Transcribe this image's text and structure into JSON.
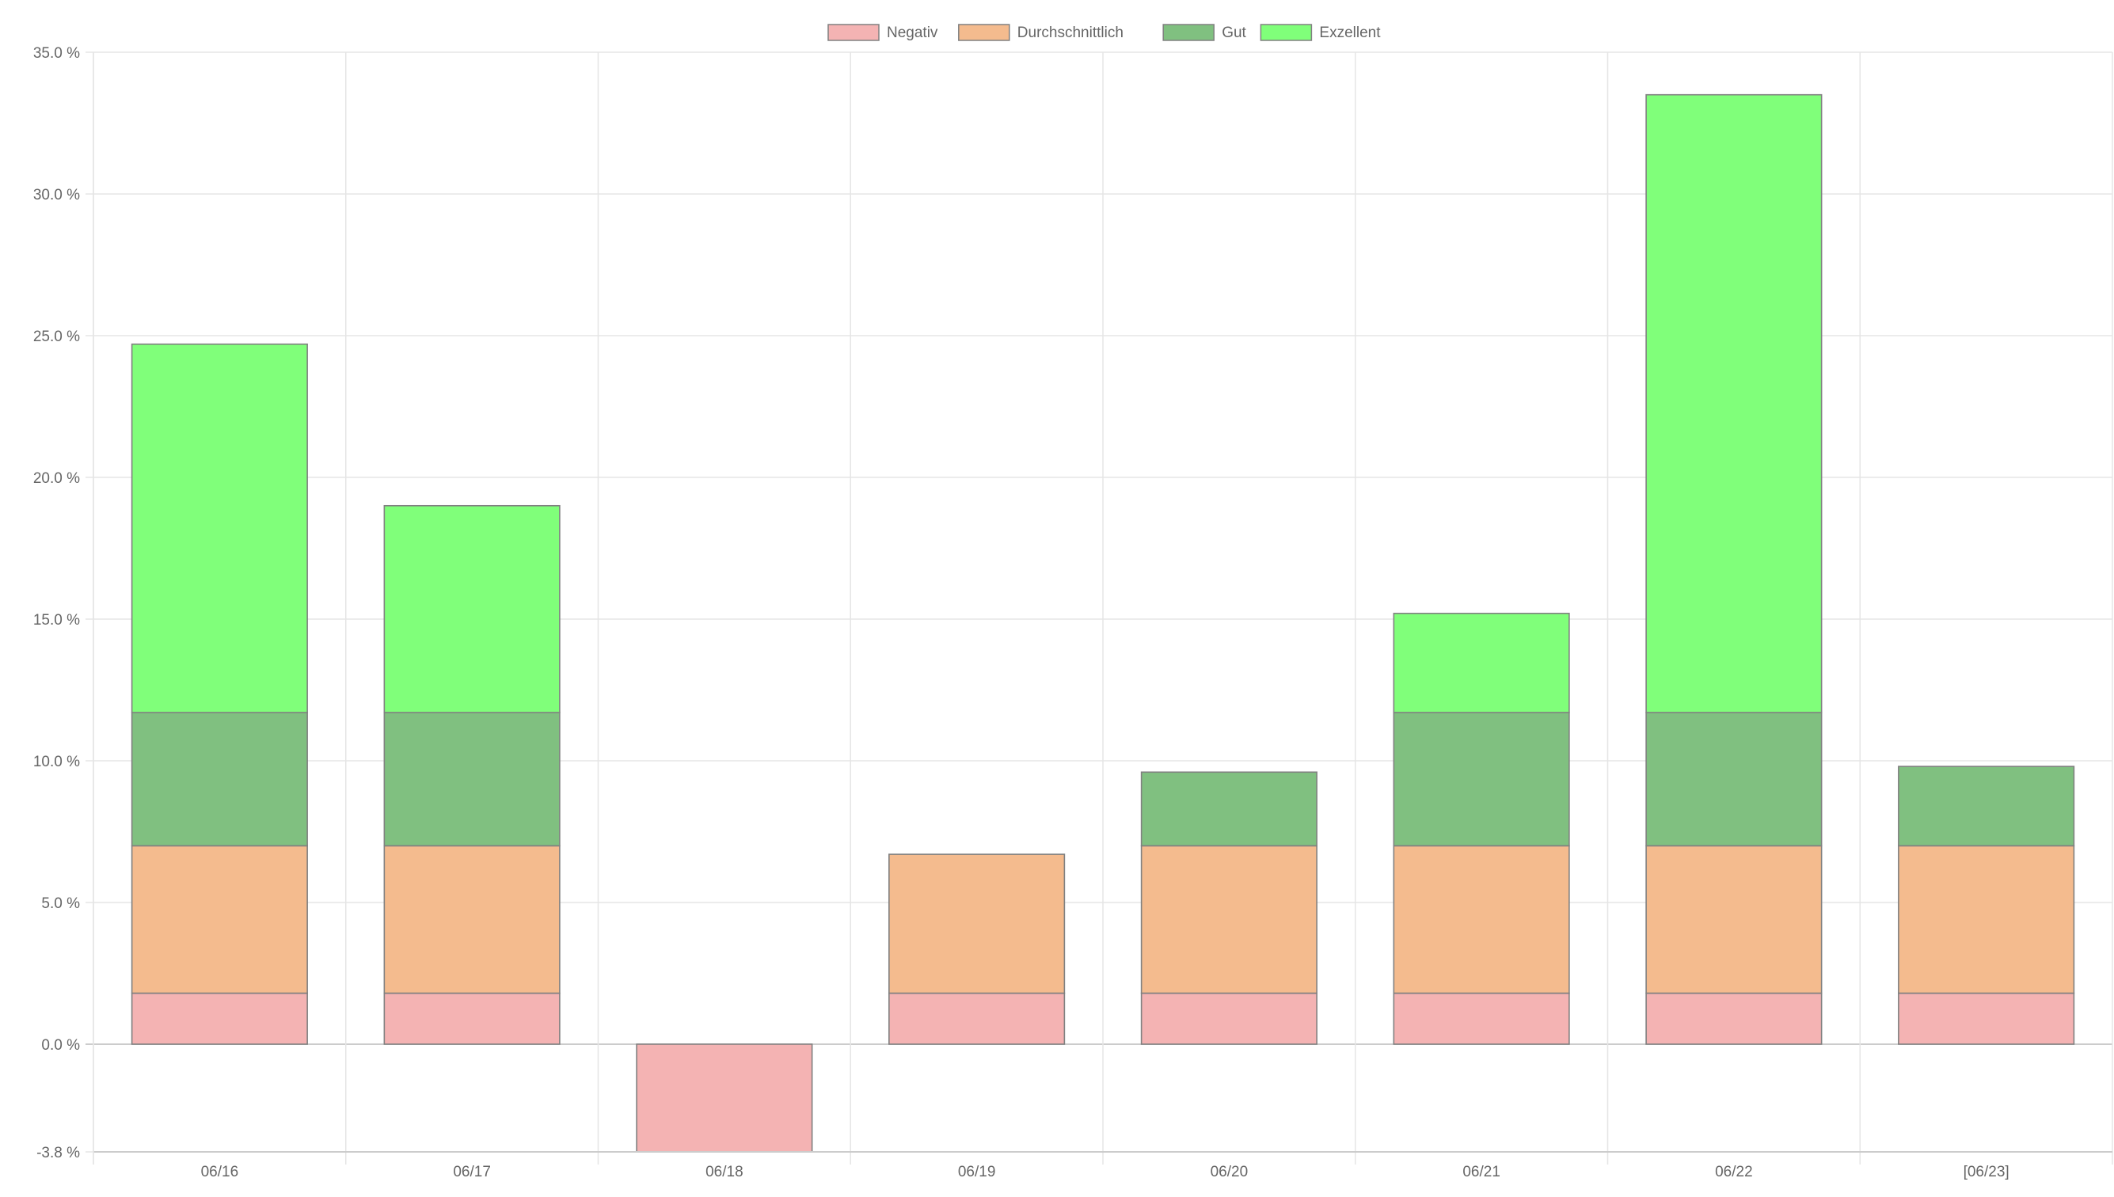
{
  "chart_data": {
    "type": "bar",
    "stacked": true,
    "categories": [
      "06/16",
      "06/17",
      "06/18",
      "06/19",
      "06/20",
      "06/21",
      "06/22",
      "[06/23]"
    ],
    "series": [
      {
        "name": "Negativ",
        "color": "#f4b3b3",
        "values": [
          1.8,
          1.8,
          -3.8,
          1.8,
          1.8,
          1.8,
          1.8,
          1.8
        ]
      },
      {
        "name": "Durchschnittlich",
        "color": "#f4bb8e",
        "values": [
          5.2,
          5.2,
          0,
          4.9,
          5.2,
          5.2,
          5.2,
          5.2
        ]
      },
      {
        "name": "Gut",
        "color": "#80c080",
        "values": [
          4.7,
          4.7,
          0,
          0,
          2.6,
          4.7,
          4.7,
          2.8
        ]
      },
      {
        "name": "Exzellent",
        "color": "#80ff7a",
        "values": [
          13.0,
          7.3,
          0,
          0,
          0,
          3.5,
          21.8,
          0
        ]
      }
    ],
    "y_ticks": [
      "35.0 %",
      "30.0 %",
      "25.0 %",
      "20.0 %",
      "15.0 %",
      "10.0 %",
      "5.0 %",
      "0.0 %",
      "-3.8 %"
    ],
    "y_tick_values": [
      35,
      30,
      25,
      20,
      15,
      10,
      5,
      0,
      -3.8
    ],
    "ylim": [
      -3.8,
      35
    ],
    "legend_position": "top-center",
    "grid": true,
    "title": "",
    "xlabel": "",
    "ylabel": ""
  }
}
